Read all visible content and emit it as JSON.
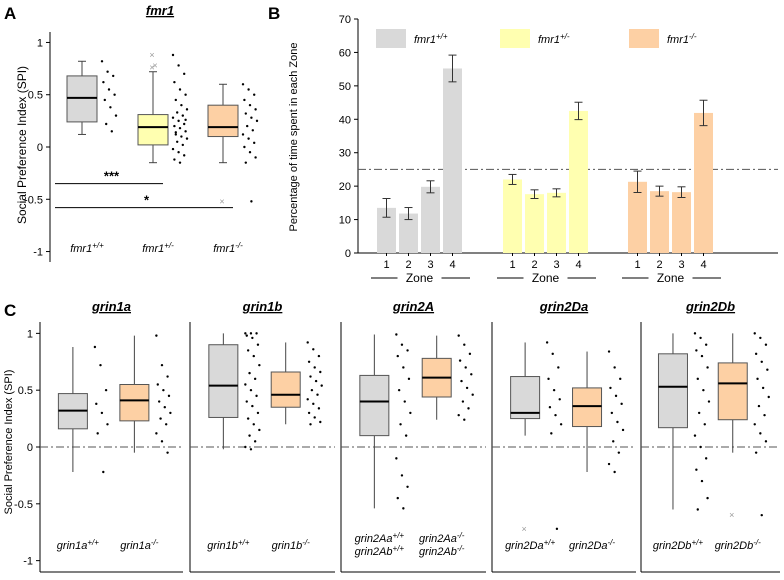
{
  "palette": {
    "wt": "#d9d9d9",
    "het": "#ffffb0",
    "mut": "#fdd0a4",
    "dot": "#000000",
    "outlier": "#9a9a9a"
  },
  "chart_data": [
    {
      "panel": "A",
      "title": "fmr1",
      "type": "box",
      "ylabel": "Social Preference Index (SPI)",
      "ylim": [
        -1.1,
        1.1
      ],
      "yticks": [
        "-1",
        "-0.5",
        "0",
        "0.5",
        "1"
      ],
      "ytick_values": [
        -1,
        -0.5,
        0,
        0.5,
        1
      ],
      "groups": [
        {
          "base": "fmr1",
          "sup": "+/+",
          "color": "wt",
          "q1": 0.24,
          "median": 0.47,
          "q3": 0.68,
          "whisker_low": 0.12,
          "whisker_high": 0.82,
          "outliers": [],
          "points": [
            0.82,
            0.72,
            0.68,
            0.62,
            0.55,
            0.5,
            0.45,
            0.38,
            0.3,
            0.22,
            0.15
          ]
        },
        {
          "base": "fmr1",
          "sup": "+/-",
          "color": "het",
          "q1": 0.02,
          "median": 0.19,
          "q3": 0.31,
          "whisker_low": -0.15,
          "whisker_high": 0.72,
          "outliers": [
            0.88,
            0.78,
            0.76
          ],
          "points": [
            0.88,
            0.78,
            0.7,
            0.62,
            0.55,
            0.5,
            0.45,
            0.4,
            0.36,
            0.33,
            0.3,
            0.28,
            0.25,
            0.22,
            0.2,
            0.18,
            0.15,
            0.12,
            0.1,
            0.08,
            0.05,
            0.02,
            -0.02,
            -0.05,
            -0.08,
            -0.12,
            -0.15,
            0.26,
            0.14
          ]
        },
        {
          "base": "fmr1",
          "sup": "-/-",
          "color": "mut",
          "q1": 0.1,
          "median": 0.19,
          "q3": 0.4,
          "whisker_low": -0.15,
          "whisker_high": 0.6,
          "outliers": [
            -0.52
          ],
          "points": [
            0.6,
            0.55,
            0.5,
            0.45,
            0.4,
            0.36,
            0.32,
            0.28,
            0.25,
            0.2,
            0.16,
            0.12,
            0.08,
            0.04,
            0.0,
            -0.05,
            -0.1,
            -0.15,
            -0.52
          ]
        }
      ],
      "significance": [
        {
          "label": "***",
          "from": 0,
          "to": 1,
          "y": -0.35
        },
        {
          "label": "*",
          "from": 0,
          "to": 2,
          "y": -0.58
        }
      ]
    },
    {
      "panel": "B",
      "type": "bar",
      "ylabel": "Percentage of time spent in each Zone",
      "ylim": [
        0,
        70
      ],
      "yticks": [
        "0",
        "10",
        "20",
        "30",
        "40",
        "50",
        "60",
        "70"
      ],
      "ytick_values": [
        0,
        10,
        20,
        30,
        40,
        50,
        60,
        70
      ],
      "reference_line": 25,
      "categories": [
        "1",
        "2",
        "3",
        "4"
      ],
      "group_axis_label": "Zone",
      "series": [
        {
          "base": "fmr1",
          "sup": "+/+",
          "color": "wt",
          "values": [
            13.5,
            11.8,
            19.8,
            55.2
          ],
          "errors": [
            2.8,
            1.8,
            1.8,
            4.0
          ]
        },
        {
          "base": "fmr1",
          "sup": "+/-",
          "color": "het",
          "values": [
            22.0,
            17.6,
            18.0,
            42.5
          ],
          "errors": [
            1.5,
            1.3,
            1.2,
            2.6
          ]
        },
        {
          "base": "fmr1",
          "sup": "-/-",
          "color": "mut",
          "values": [
            21.3,
            18.5,
            18.2,
            41.9
          ],
          "errors": [
            3.2,
            1.5,
            1.6,
            3.8
          ]
        }
      ]
    },
    {
      "panel": "C",
      "type": "box",
      "ylabel": "Social Preference Index (SPI)",
      "ylim": [
        -1.1,
        1.1
      ],
      "yticks": [
        "-1",
        "-0.5",
        "0",
        "0.5",
        "1"
      ],
      "ytick_values": [
        -1,
        -0.5,
        0,
        0.5,
        1
      ],
      "reference_line": 0,
      "subplots": [
        {
          "title": "grin1a",
          "groups": [
            {
              "lines": [
                {
                  "base": "grin1a",
                  "sup": "+/+"
                }
              ],
              "color": "wt",
              "q1": 0.16,
              "median": 0.32,
              "q3": 0.47,
              "whisker_low": -0.22,
              "whisker_high": 0.88,
              "outliers": [],
              "points": [
                0.88,
                0.72,
                0.5,
                0.38,
                0.3,
                0.2,
                0.12,
                -0.22
              ]
            },
            {
              "lines": [
                {
                  "base": "grin1a",
                  "sup": "-/-"
                }
              ],
              "color": "mut",
              "q1": 0.23,
              "median": 0.41,
              "q3": 0.55,
              "whisker_low": -0.05,
              "whisker_high": 0.98,
              "outliers": [],
              "points": [
                0.98,
                0.72,
                0.62,
                0.55,
                0.5,
                0.45,
                0.4,
                0.35,
                0.3,
                0.25,
                0.2,
                0.12,
                0.05,
                -0.05
              ]
            }
          ]
        },
        {
          "title": "grin1b",
          "groups": [
            {
              "lines": [
                {
                  "base": "grin1b",
                  "sup": "+/+"
                }
              ],
              "color": "wt",
              "q1": 0.26,
              "median": 0.54,
              "q3": 0.9,
              "whisker_low": -0.02,
              "whisker_high": 1.0,
              "outliers": [],
              "points": [
                1.0,
                1.0,
                1.0,
                0.98,
                0.96,
                0.9,
                0.85,
                0.8,
                0.72,
                0.65,
                0.6,
                0.55,
                0.5,
                0.45,
                0.4,
                0.36,
                0.3,
                0.25,
                0.2,
                0.15,
                0.1,
                0.05,
                0.0,
                -0.02
              ]
            },
            {
              "lines": [
                {
                  "base": "grin1b",
                  "sup": "-/-"
                }
              ],
              "color": "mut",
              "q1": 0.35,
              "median": 0.46,
              "q3": 0.66,
              "whisker_low": 0.2,
              "whisker_high": 0.92,
              "outliers": [],
              "points": [
                0.92,
                0.86,
                0.8,
                0.75,
                0.7,
                0.66,
                0.62,
                0.58,
                0.54,
                0.5,
                0.46,
                0.42,
                0.38,
                0.34,
                0.3,
                0.26,
                0.22,
                0.2
              ]
            }
          ]
        },
        {
          "title": "grin2A",
          "groups": [
            {
              "lines": [
                {
                  "base": "grin2Aa",
                  "sup": "+/+"
                },
                {
                  "base": "grin2Ab",
                  "sup": "+/+"
                }
              ],
              "color": "wt",
              "q1": 0.1,
              "median": 0.4,
              "q3": 0.63,
              "whisker_low": -0.54,
              "whisker_high": 0.99,
              "outliers": [],
              "points": [
                0.99,
                0.9,
                0.85,
                0.8,
                0.7,
                0.6,
                0.5,
                0.4,
                0.3,
                0.2,
                0.1,
                -0.1,
                -0.25,
                -0.35,
                -0.45,
                -0.54
              ]
            },
            {
              "lines": [
                {
                  "base": "grin2Aa",
                  "sup": "-/-"
                },
                {
                  "base": "grin2Ab",
                  "sup": "-/-"
                }
              ],
              "color": "mut",
              "q1": 0.44,
              "median": 0.61,
              "q3": 0.78,
              "whisker_low": 0.24,
              "whisker_high": 0.98,
              "outliers": [],
              "points": [
                0.98,
                0.9,
                0.82,
                0.76,
                0.7,
                0.64,
                0.58,
                0.52,
                0.46,
                0.4,
                0.34,
                0.28,
                0.24
              ]
            }
          ]
        },
        {
          "title": "grin2Da",
          "groups": [
            {
              "lines": [
                {
                  "base": "grin2Da",
                  "sup": "+/+"
                }
              ],
              "color": "wt",
              "q1": 0.25,
              "median": 0.3,
              "q3": 0.62,
              "whisker_low": 0.1,
              "whisker_high": 0.92,
              "outliers": [
                -0.72
              ],
              "points": [
                0.92,
                0.82,
                0.7,
                0.6,
                0.5,
                0.42,
                0.35,
                0.28,
                0.2,
                0.12,
                -0.72
              ]
            },
            {
              "lines": [
                {
                  "base": "grin2Da",
                  "sup": "-/-"
                }
              ],
              "color": "mut",
              "q1": 0.18,
              "median": 0.36,
              "q3": 0.52,
              "whisker_low": -0.22,
              "whisker_high": 0.84,
              "outliers": [],
              "points": [
                0.84,
                0.7,
                0.6,
                0.52,
                0.45,
                0.38,
                0.3,
                0.22,
                0.15,
                0.05,
                -0.05,
                -0.15,
                -0.22
              ]
            }
          ]
        },
        {
          "title": "grin2Db",
          "groups": [
            {
              "lines": [
                {
                  "base": "grin2Db",
                  "sup": "+/+"
                }
              ],
              "color": "wt",
              "q1": 0.17,
              "median": 0.53,
              "q3": 0.82,
              "whisker_low": -0.55,
              "whisker_high": 1.0,
              "outliers": [],
              "points": [
                1.0,
                0.96,
                0.9,
                0.85,
                0.8,
                0.7,
                0.6,
                0.5,
                0.4,
                0.3,
                0.2,
                0.1,
                0.0,
                -0.1,
                -0.2,
                -0.3,
                -0.45,
                -0.55
              ]
            },
            {
              "lines": [
                {
                  "base": "grin2Db",
                  "sup": "-/-"
                }
              ],
              "color": "mut",
              "q1": 0.24,
              "median": 0.56,
              "q3": 0.74,
              "whisker_low": -0.05,
              "whisker_high": 1.0,
              "outliers": [
                -0.6
              ],
              "points": [
                1.0,
                0.96,
                0.9,
                0.82,
                0.75,
                0.68,
                0.6,
                0.52,
                0.44,
                0.36,
                0.28,
                0.2,
                0.12,
                0.05,
                -0.05,
                -0.6
              ]
            }
          ]
        }
      ]
    }
  ]
}
